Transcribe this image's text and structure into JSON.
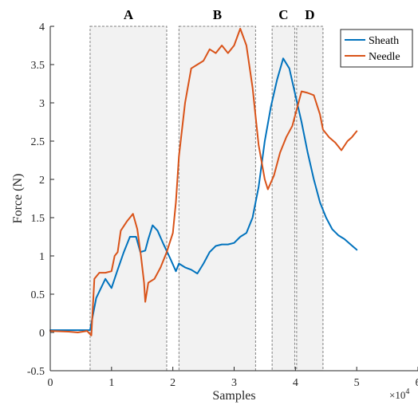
{
  "chart_data": {
    "type": "line",
    "title": "",
    "xlabel": "Samples",
    "ylabel": "Force (N)",
    "xlim": [
      0,
      60000
    ],
    "ylim": [
      -0.5,
      4
    ],
    "x_exponent_label": "×10",
    "x_exponent_power": "4",
    "x_ticks": [
      0,
      10000,
      20000,
      30000,
      40000,
      50000,
      60000
    ],
    "x_tick_labels": [
      "0",
      "1",
      "2",
      "3",
      "4",
      "5",
      "6"
    ],
    "y_ticks": [
      -0.5,
      0,
      0.5,
      1,
      1.5,
      2,
      2.5,
      3,
      3.5,
      4
    ],
    "y_tick_labels": [
      "-0.5",
      "0",
      "0.5",
      "1",
      "1.5",
      "2",
      "2.5",
      "3",
      "3.5",
      "4"
    ],
    "grid": false,
    "legend_position": "top-right",
    "regions": [
      {
        "label": "A",
        "x0": 6500,
        "x1": 19000
      },
      {
        "label": "B",
        "x0": 21000,
        "x1": 33500
      },
      {
        "label": "C",
        "x0": 36200,
        "x1": 39900
      },
      {
        "label": "D",
        "x0": 40200,
        "x1": 44500
      }
    ],
    "region_style": {
      "fill": "#f2f2f2",
      "stroke": "#808080"
    },
    "series": [
      {
        "name": "Sheath",
        "color": "#0072BD",
        "points": [
          [
            0,
            0.03
          ],
          [
            3000,
            0.03
          ],
          [
            6000,
            0.03
          ],
          [
            6500,
            0.03
          ],
          [
            7500,
            0.45
          ],
          [
            9000,
            0.7
          ],
          [
            10000,
            0.58
          ],
          [
            11000,
            0.82
          ],
          [
            12000,
            1.05
          ],
          [
            13000,
            1.25
          ],
          [
            14000,
            1.25
          ],
          [
            14700,
            1.05
          ],
          [
            15500,
            1.07
          ],
          [
            16000,
            1.22
          ],
          [
            16700,
            1.4
          ],
          [
            17500,
            1.33
          ],
          [
            18500,
            1.15
          ],
          [
            19500,
            0.98
          ],
          [
            20500,
            0.8
          ],
          [
            21000,
            0.9
          ],
          [
            22000,
            0.85
          ],
          [
            23000,
            0.82
          ],
          [
            24000,
            0.77
          ],
          [
            25000,
            0.9
          ],
          [
            26000,
            1.05
          ],
          [
            27000,
            1.13
          ],
          [
            28000,
            1.15
          ],
          [
            29000,
            1.15
          ],
          [
            30000,
            1.17
          ],
          [
            31000,
            1.25
          ],
          [
            32000,
            1.3
          ],
          [
            33000,
            1.5
          ],
          [
            34000,
            1.9
          ],
          [
            35000,
            2.5
          ],
          [
            36000,
            2.95
          ],
          [
            37000,
            3.3
          ],
          [
            38000,
            3.58
          ],
          [
            39000,
            3.45
          ],
          [
            40000,
            3.1
          ],
          [
            41000,
            2.75
          ],
          [
            42000,
            2.35
          ],
          [
            43000,
            2.0
          ],
          [
            44000,
            1.7
          ],
          [
            45000,
            1.5
          ],
          [
            46000,
            1.35
          ],
          [
            47000,
            1.27
          ],
          [
            48000,
            1.22
          ],
          [
            49000,
            1.15
          ],
          [
            50000,
            1.08
          ]
        ]
      },
      {
        "name": "Needle",
        "color": "#D95319",
        "points": [
          [
            0,
            0.02
          ],
          [
            3000,
            0.01
          ],
          [
            4500,
            0.0
          ],
          [
            6000,
            0.02
          ],
          [
            6700,
            -0.04
          ],
          [
            7200,
            0.7
          ],
          [
            8000,
            0.78
          ],
          [
            9000,
            0.78
          ],
          [
            10000,
            0.8
          ],
          [
            10500,
            1.0
          ],
          [
            11000,
            1.05
          ],
          [
            11500,
            1.33
          ],
          [
            12500,
            1.45
          ],
          [
            13500,
            1.55
          ],
          [
            14200,
            1.35
          ],
          [
            14800,
            1.0
          ],
          [
            15300,
            0.65
          ],
          [
            15500,
            0.4
          ],
          [
            16000,
            0.65
          ],
          [
            17000,
            0.7
          ],
          [
            18000,
            0.85
          ],
          [
            19000,
            1.05
          ],
          [
            20000,
            1.3
          ],
          [
            20500,
            1.7
          ],
          [
            21000,
            2.3
          ],
          [
            22000,
            3.0
          ],
          [
            23000,
            3.45
          ],
          [
            24000,
            3.5
          ],
          [
            25000,
            3.55
          ],
          [
            26000,
            3.7
          ],
          [
            27000,
            3.65
          ],
          [
            28000,
            3.75
          ],
          [
            29000,
            3.65
          ],
          [
            30000,
            3.75
          ],
          [
            31000,
            3.97
          ],
          [
            32000,
            3.75
          ],
          [
            33000,
            3.2
          ],
          [
            34000,
            2.45
          ],
          [
            35000,
            2.0
          ],
          [
            35500,
            1.87
          ],
          [
            36500,
            2.05
          ],
          [
            37500,
            2.35
          ],
          [
            38500,
            2.55
          ],
          [
            39500,
            2.7
          ],
          [
            40000,
            2.85
          ],
          [
            41000,
            3.15
          ],
          [
            42000,
            3.13
          ],
          [
            43000,
            3.1
          ],
          [
            44000,
            2.85
          ],
          [
            44500,
            2.65
          ],
          [
            45500,
            2.55
          ],
          [
            46500,
            2.48
          ],
          [
            47500,
            2.38
          ],
          [
            48500,
            2.5
          ],
          [
            49200,
            2.55
          ],
          [
            50000,
            2.63
          ]
        ]
      }
    ]
  }
}
